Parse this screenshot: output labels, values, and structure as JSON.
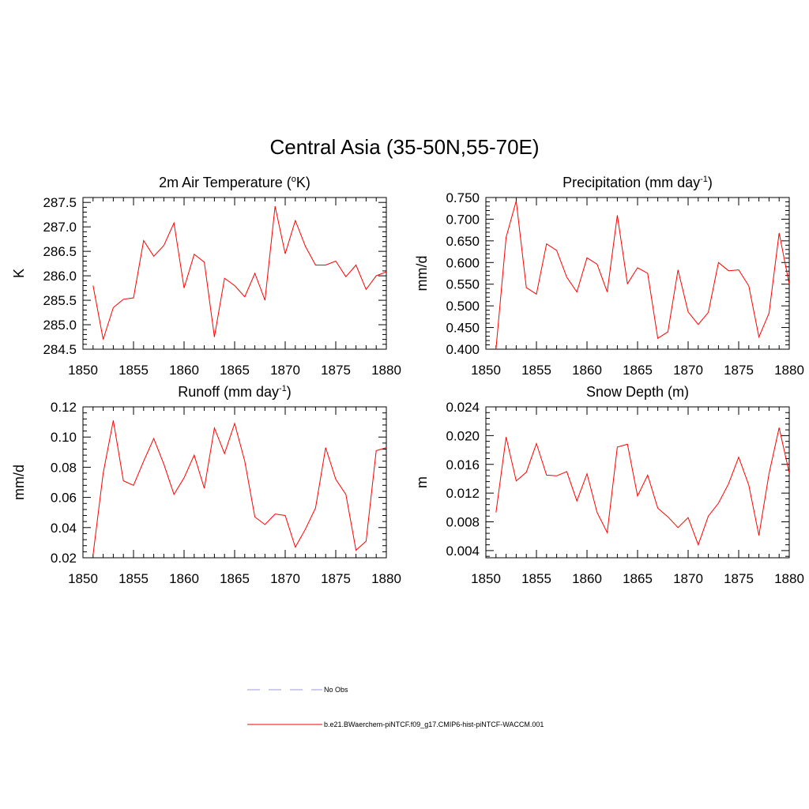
{
  "title": "Central Asia (35-50N,55-70E)",
  "colors": {
    "series": "#ff0000",
    "obs": "#9999dd",
    "axis": "#000000"
  },
  "legend": {
    "obs_label": "No Obs",
    "model_label": "b.e21.BWaerchem-piNTCF.f09_g17.CMIP6-hist-piNTCF-WACCM.001"
  },
  "chart_data": [
    {
      "type": "line",
      "title": "2m Air Temperature (",
      "title_sup": "o",
      "title_end": "K)",
      "ylabel": "K",
      "xlim": [
        1850,
        1880
      ],
      "ylim": [
        284.5,
        287.6
      ],
      "xticks": [
        "1850",
        "1855",
        "1860",
        "1865",
        "1870",
        "1875",
        "1880"
      ],
      "yticks": [
        "284.5",
        "285.0",
        "285.5",
        "286.0",
        "286.5",
        "287.0",
        "287.5"
      ],
      "x": [
        1851,
        1852,
        1853,
        1854,
        1855,
        1856,
        1857,
        1858,
        1859,
        1860,
        1861,
        1862,
        1863,
        1864,
        1865,
        1866,
        1867,
        1868,
        1869,
        1870,
        1871,
        1872,
        1873,
        1874,
        1875,
        1876,
        1877,
        1878,
        1879,
        1880
      ],
      "series": [
        {
          "values": [
            285.8,
            284.7,
            285.35,
            285.52,
            285.55,
            286.72,
            286.4,
            286.62,
            287.08,
            285.75,
            286.44,
            286.28,
            284.75,
            285.95,
            285.8,
            285.57,
            286.05,
            285.5,
            287.42,
            286.45,
            287.13,
            286.6,
            286.22,
            286.22,
            286.3,
            285.98,
            286.22,
            285.72,
            286.0,
            286.08
          ]
        }
      ]
    },
    {
      "type": "line",
      "title": "Precipitation (mm day",
      "title_sup": "-1",
      "title_end": ")",
      "ylabel": "mm/d",
      "xlim": [
        1850,
        1880
      ],
      "ylim": [
        0.4,
        0.75
      ],
      "xticks": [
        "1850",
        "1855",
        "1860",
        "1865",
        "1870",
        "1875",
        "1880"
      ],
      "yticks": [
        "0.400",
        "0.450",
        "0.500",
        "0.550",
        "0.600",
        "0.650",
        "0.700",
        "0.750"
      ],
      "x": [
        1851,
        1852,
        1853,
        1854,
        1855,
        1856,
        1857,
        1858,
        1859,
        1860,
        1861,
        1862,
        1863,
        1864,
        1865,
        1866,
        1867,
        1868,
        1869,
        1870,
        1871,
        1872,
        1873,
        1874,
        1875,
        1876,
        1877,
        1878,
        1879,
        1880
      ],
      "series": [
        {
          "values": [
            0.4,
            0.658,
            0.742,
            0.542,
            0.527,
            0.643,
            0.628,
            0.566,
            0.532,
            0.611,
            0.596,
            0.532,
            0.709,
            0.551,
            0.588,
            0.575,
            0.425,
            0.44,
            0.583,
            0.486,
            0.457,
            0.485,
            0.6,
            0.581,
            0.583,
            0.546,
            0.428,
            0.483,
            0.668,
            0.55
          ]
        }
      ]
    },
    {
      "type": "line",
      "title": "Runoff (mm day",
      "title_sup": "-1",
      "title_end": ")",
      "ylabel": "mm/d",
      "xlim": [
        1850,
        1880
      ],
      "ylim": [
        0.02,
        0.12
      ],
      "xticks": [
        "1850",
        "1855",
        "1860",
        "1865",
        "1870",
        "1875",
        "1880"
      ],
      "yticks": [
        "0.02",
        "0.04",
        "0.06",
        "0.08",
        "0.10",
        "0.12"
      ],
      "x": [
        1851,
        1852,
        1853,
        1854,
        1855,
        1856,
        1857,
        1858,
        1859,
        1860,
        1861,
        1862,
        1863,
        1864,
        1865,
        1866,
        1867,
        1868,
        1869,
        1870,
        1871,
        1872,
        1873,
        1874,
        1875,
        1876,
        1877,
        1878,
        1879,
        1880
      ],
      "series": [
        {
          "values": [
            0.022,
            0.076,
            0.111,
            0.071,
            0.068,
            0.084,
            0.099,
            0.082,
            0.062,
            0.073,
            0.088,
            0.066,
            0.106,
            0.089,
            0.109,
            0.084,
            0.047,
            0.042,
            0.049,
            0.048,
            0.027,
            0.039,
            0.053,
            0.093,
            0.072,
            0.062,
            0.025,
            0.031,
            0.091,
            0.093
          ]
        }
      ]
    },
    {
      "type": "line",
      "title": "Snow Depth (m)",
      "title_sup": "",
      "title_end": "",
      "ylabel": "m",
      "xlim": [
        1850,
        1880
      ],
      "ylim": [
        0.003,
        0.024
      ],
      "xticks": [
        "1850",
        "1855",
        "1860",
        "1865",
        "1870",
        "1875",
        "1880"
      ],
      "yticks": [
        "0.004",
        "0.008",
        "0.012",
        "0.016",
        "0.020",
        "0.024"
      ],
      "x": [
        1851,
        1852,
        1853,
        1854,
        1855,
        1856,
        1857,
        1858,
        1859,
        1860,
        1861,
        1862,
        1863,
        1864,
        1865,
        1866,
        1867,
        1868,
        1869,
        1870,
        1871,
        1872,
        1873,
        1874,
        1875,
        1876,
        1877,
        1878,
        1879,
        1880
      ],
      "series": [
        {
          "values": [
            0.0093,
            0.0198,
            0.0137,
            0.0149,
            0.0189,
            0.0145,
            0.0144,
            0.015,
            0.0109,
            0.0147,
            0.0093,
            0.0065,
            0.0184,
            0.0188,
            0.0116,
            0.0145,
            0.0099,
            0.0087,
            0.0072,
            0.0086,
            0.0048,
            0.0088,
            0.0106,
            0.0133,
            0.017,
            0.0131,
            0.0061,
            0.0147,
            0.0211,
            0.0148
          ]
        }
      ]
    }
  ]
}
